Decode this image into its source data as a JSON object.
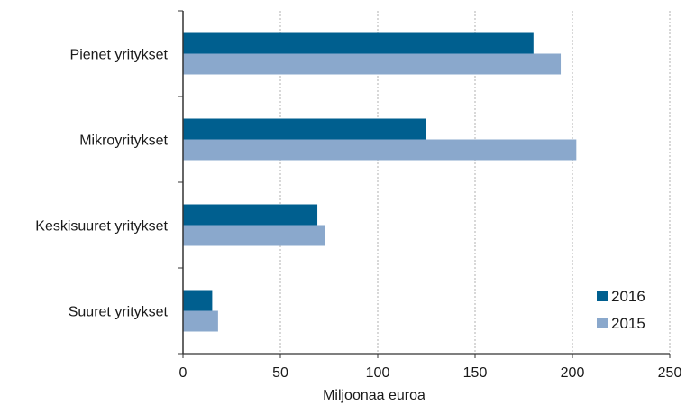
{
  "chart_data": {
    "type": "bar",
    "orientation": "horizontal",
    "title": "",
    "xlabel": "Miljoonaa euroa",
    "ylabel": "",
    "xlim": [
      0,
      250
    ],
    "xticks": [
      0,
      50,
      100,
      150,
      200,
      250
    ],
    "grid": "vertical dashed",
    "legend_position": "bottom-right",
    "categories": [
      "Pienet yritykset",
      "Mikroyritykset",
      "Keskisuuret yritykset",
      "Suuret yritykset"
    ],
    "series": [
      {
        "name": "2016",
        "color": "#005f8f",
        "values": [
          180,
          125,
          69,
          15
        ]
      },
      {
        "name": "2015",
        "color": "#8aa8cc",
        "values": [
          194,
          202,
          73,
          18
        ]
      }
    ]
  }
}
